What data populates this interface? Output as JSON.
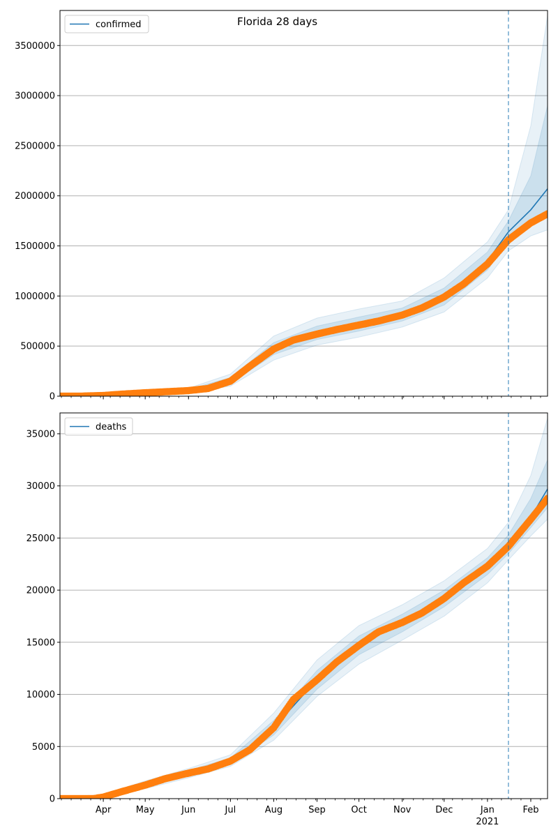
{
  "chart_data": [
    {
      "type": "line",
      "title": "Florida 28 days",
      "xlabel": "",
      "ylabel": "",
      "legend": {
        "label": "confirmed",
        "placement": "top-left"
      },
      "x_range": [
        "2020-03-01",
        "2021-02-13"
      ],
      "ylim": [
        0,
        3850000
      ],
      "yticks": [
        0,
        500000,
        1000000,
        1500000,
        2000000,
        2500000,
        3000000,
        3500000
      ],
      "grid": "y",
      "forecast_start": "2021-01-16",
      "observed": [
        [
          "2020-03-01",
          0
        ],
        [
          "2020-03-15",
          200
        ],
        [
          "2020-04-01",
          7000
        ],
        [
          "2020-04-15",
          21000
        ],
        [
          "2020-05-01",
          34000
        ],
        [
          "2020-05-15",
          44000
        ],
        [
          "2020-06-01",
          56000
        ],
        [
          "2020-06-15",
          77000
        ],
        [
          "2020-07-01",
          150000
        ],
        [
          "2020-07-15",
          300000
        ],
        [
          "2020-08-01",
          470000
        ],
        [
          "2020-08-15",
          560000
        ],
        [
          "2020-09-01",
          620000
        ],
        [
          "2020-09-15",
          665000
        ],
        [
          "2020-10-01",
          710000
        ],
        [
          "2020-10-15",
          750000
        ],
        [
          "2020-11-01",
          810000
        ],
        [
          "2020-11-15",
          880000
        ],
        [
          "2020-12-01",
          990000
        ],
        [
          "2020-12-15",
          1120000
        ],
        [
          "2021-01-01",
          1320000
        ],
        [
          "2021-01-16",
          1560000
        ],
        [
          "2021-02-01",
          1730000
        ],
        [
          "2021-02-13",
          1820000
        ]
      ],
      "model": [
        [
          "2020-03-01",
          0
        ],
        [
          "2020-04-01",
          7000
        ],
        [
          "2020-05-01",
          34000
        ],
        [
          "2020-06-01",
          56000
        ],
        [
          "2020-07-01",
          150000
        ],
        [
          "2020-08-01",
          470000
        ],
        [
          "2020-09-01",
          620000
        ],
        [
          "2020-10-01",
          710000
        ],
        [
          "2020-11-01",
          810000
        ],
        [
          "2020-12-01",
          990000
        ],
        [
          "2021-01-01",
          1350000
        ],
        [
          "2021-01-16",
          1640000
        ],
        [
          "2021-02-01",
          1860000
        ],
        [
          "2021-02-13",
          2070000
        ]
      ],
      "bands": [
        {
          "level": "outer",
          "upper": [
            [
              "2020-03-01",
              10000
            ],
            [
              "2020-04-01",
              20000
            ],
            [
              "2020-05-01",
              50000
            ],
            [
              "2020-06-01",
              80000
            ],
            [
              "2020-07-01",
              220000
            ],
            [
              "2020-08-01",
              600000
            ],
            [
              "2020-09-01",
              780000
            ],
            [
              "2020-10-01",
              870000
            ],
            [
              "2020-11-01",
              950000
            ],
            [
              "2020-12-01",
              1180000
            ],
            [
              "2021-01-01",
              1540000
            ],
            [
              "2021-01-16",
              1860000
            ],
            [
              "2021-02-01",
              2700000
            ],
            [
              "2021-02-13",
              3800000
            ]
          ],
          "lower": [
            [
              "2020-03-01",
              0
            ],
            [
              "2020-04-01",
              0
            ],
            [
              "2020-05-01",
              20000
            ],
            [
              "2020-06-01",
              35000
            ],
            [
              "2020-07-01",
              100000
            ],
            [
              "2020-08-01",
              360000
            ],
            [
              "2020-09-01",
              510000
            ],
            [
              "2020-10-01",
              590000
            ],
            [
              "2020-11-01",
              690000
            ],
            [
              "2020-12-01",
              840000
            ],
            [
              "2021-01-01",
              1180000
            ],
            [
              "2021-01-16",
              1450000
            ],
            [
              "2021-02-01",
              1600000
            ],
            [
              "2021-02-13",
              1660000
            ]
          ]
        },
        {
          "level": "inner",
          "upper": [
            [
              "2020-03-01",
              5000
            ],
            [
              "2020-04-01",
              14000
            ],
            [
              "2020-05-01",
              42000
            ],
            [
              "2020-06-01",
              68000
            ],
            [
              "2020-07-01",
              185000
            ],
            [
              "2020-08-01",
              535000
            ],
            [
              "2020-09-01",
              700000
            ],
            [
              "2020-10-01",
              790000
            ],
            [
              "2020-11-01",
              880000
            ],
            [
              "2020-12-01",
              1080000
            ],
            [
              "2021-01-01",
              1440000
            ],
            [
              "2021-01-16",
              1750000
            ],
            [
              "2021-02-01",
              2200000
            ],
            [
              "2021-02-13",
              2900000
            ]
          ],
          "lower": [
            [
              "2020-03-01",
              0
            ],
            [
              "2020-04-01",
              2000
            ],
            [
              "2020-05-01",
              27000
            ],
            [
              "2020-06-01",
              45000
            ],
            [
              "2020-07-01",
              125000
            ],
            [
              "2020-08-01",
              415000
            ],
            [
              "2020-09-01",
              565000
            ],
            [
              "2020-10-01",
              650000
            ],
            [
              "2020-11-01",
              750000
            ],
            [
              "2020-12-01",
              910000
            ],
            [
              "2021-01-01",
              1260000
            ],
            [
              "2021-01-16",
              1540000
            ],
            [
              "2021-02-01",
              1700000
            ],
            [
              "2021-02-13",
              1800000
            ]
          ]
        }
      ]
    },
    {
      "type": "line",
      "title": "",
      "xlabel": "",
      "ylabel": "",
      "legend": {
        "label": "deaths",
        "placement": "top-left"
      },
      "x_range": [
        "2020-03-01",
        "2021-02-13"
      ],
      "ylim": [
        0,
        37000
      ],
      "yticks": [
        0,
        5000,
        10000,
        15000,
        20000,
        25000,
        30000,
        35000
      ],
      "grid": "y",
      "forecast_start": "2021-01-16",
      "observed": [
        [
          "2020-03-01",
          0
        ],
        [
          "2020-03-25",
          0
        ],
        [
          "2020-04-01",
          150
        ],
        [
          "2020-04-15",
          700
        ],
        [
          "2020-05-01",
          1300
        ],
        [
          "2020-05-15",
          1900
        ],
        [
          "2020-06-01",
          2450
        ],
        [
          "2020-06-15",
          2850
        ],
        [
          "2020-07-01",
          3600
        ],
        [
          "2020-07-15",
          4700
        ],
        [
          "2020-08-01",
          6800
        ],
        [
          "2020-08-15",
          9500
        ],
        [
          "2020-09-01",
          11400
        ],
        [
          "2020-09-15",
          13100
        ],
        [
          "2020-10-01",
          14700
        ],
        [
          "2020-10-15",
          16000
        ],
        [
          "2020-11-01",
          16900
        ],
        [
          "2020-11-15",
          17800
        ],
        [
          "2020-12-01",
          19200
        ],
        [
          "2020-12-15",
          20700
        ],
        [
          "2021-01-01",
          22300
        ],
        [
          "2021-01-16",
          24200
        ],
        [
          "2021-02-01",
          26800
        ],
        [
          "2021-02-13",
          28800
        ]
      ],
      "model": [
        [
          "2020-03-01",
          0
        ],
        [
          "2020-04-01",
          150
        ],
        [
          "2020-05-01",
          1300
        ],
        [
          "2020-06-01",
          2450
        ],
        [
          "2020-07-01",
          3600
        ],
        [
          "2020-08-01",
          6800
        ],
        [
          "2020-09-01",
          11400
        ],
        [
          "2020-10-01",
          14700
        ],
        [
          "2020-11-01",
          16900
        ],
        [
          "2020-12-01",
          19200
        ],
        [
          "2021-01-01",
          22300
        ],
        [
          "2021-01-16",
          24300
        ],
        [
          "2021-02-01",
          27000
        ],
        [
          "2021-02-13",
          29700
        ]
      ],
      "bands": [
        {
          "level": "outer",
          "upper": [
            [
              "2020-03-01",
              50
            ],
            [
              "2020-04-01",
              400
            ],
            [
              "2020-05-01",
              1700
            ],
            [
              "2020-06-01",
              2900
            ],
            [
              "2020-07-01",
              4200
            ],
            [
              "2020-08-01",
              8200
            ],
            [
              "2020-09-01",
              13300
            ],
            [
              "2020-10-01",
              16600
            ],
            [
              "2020-11-01",
              18600
            ],
            [
              "2020-12-01",
              20900
            ],
            [
              "2021-01-01",
              24000
            ],
            [
              "2021-01-16",
              26500
            ],
            [
              "2021-02-01",
              31000
            ],
            [
              "2021-02-13",
              36500
            ]
          ],
          "lower": [
            [
              "2020-03-01",
              0
            ],
            [
              "2020-04-01",
              0
            ],
            [
              "2020-05-01",
              950
            ],
            [
              "2020-06-01",
              2000
            ],
            [
              "2020-07-01",
              3100
            ],
            [
              "2020-08-01",
              5600
            ],
            [
              "2020-09-01",
              9800
            ],
            [
              "2020-10-01",
              12900
            ],
            [
              "2020-11-01",
              15200
            ],
            [
              "2020-12-01",
              17500
            ],
            [
              "2021-01-01",
              20700
            ],
            [
              "2021-01-16",
              22900
            ],
            [
              "2021-02-01",
              25200
            ],
            [
              "2021-02-13",
              26800
            ]
          ]
        },
        {
          "level": "inner",
          "upper": [
            [
              "2020-03-01",
              20
            ],
            [
              "2020-04-01",
              280
            ],
            [
              "2020-05-01",
              1500
            ],
            [
              "2020-06-01",
              2700
            ],
            [
              "2020-07-01",
              3900
            ],
            [
              "2020-08-01",
              7500
            ],
            [
              "2020-09-01",
              12300
            ],
            [
              "2020-10-01",
              15600
            ],
            [
              "2020-11-01",
              17700
            ],
            [
              "2020-12-01",
              20000
            ],
            [
              "2021-01-01",
              23100
            ],
            [
              "2021-01-16",
              25300
            ],
            [
              "2021-02-01",
              28800
            ],
            [
              "2021-02-13",
              32500
            ]
          ],
          "lower": [
            [
              "2020-03-01",
              0
            ],
            [
              "2020-04-01",
              50
            ],
            [
              "2020-05-01",
              1100
            ],
            [
              "2020-06-01",
              2200
            ],
            [
              "2020-07-01",
              3300
            ],
            [
              "2020-08-01",
              6100
            ],
            [
              "2020-09-01",
              10500
            ],
            [
              "2020-10-01",
              13800
            ],
            [
              "2020-11-01",
              16000
            ],
            [
              "2020-12-01",
              18400
            ],
            [
              "2021-01-01",
              21500
            ],
            [
              "2021-01-16",
              23500
            ],
            [
              "2021-02-01",
              26000
            ],
            [
              "2021-02-13",
              27900
            ]
          ]
        }
      ]
    }
  ],
  "x_ticks": [
    {
      "label": "Apr",
      "date": "2020-04-01"
    },
    {
      "label": "May",
      "date": "2020-05-01"
    },
    {
      "label": "Jun",
      "date": "2020-06-01"
    },
    {
      "label": "Jul",
      "date": "2020-07-01"
    },
    {
      "label": "Aug",
      "date": "2020-08-01"
    },
    {
      "label": "Sep",
      "date": "2020-09-01"
    },
    {
      "label": "Oct",
      "date": "2020-10-01"
    },
    {
      "label": "Nov",
      "date": "2020-11-01"
    },
    {
      "label": "Dec",
      "date": "2020-12-01"
    },
    {
      "label": "Jan",
      "date": "2021-01-01"
    },
    {
      "label": "Feb",
      "date": "2021-02-01"
    }
  ],
  "x_year_label": {
    "label": "2021",
    "date": "2021-01-01"
  },
  "colors": {
    "model_line": "#1f77b4",
    "observed_points": "#ff7f0e",
    "band": "#1f77b4",
    "forecast_line": "#1f77b4",
    "grid": "#b0b0b0"
  }
}
